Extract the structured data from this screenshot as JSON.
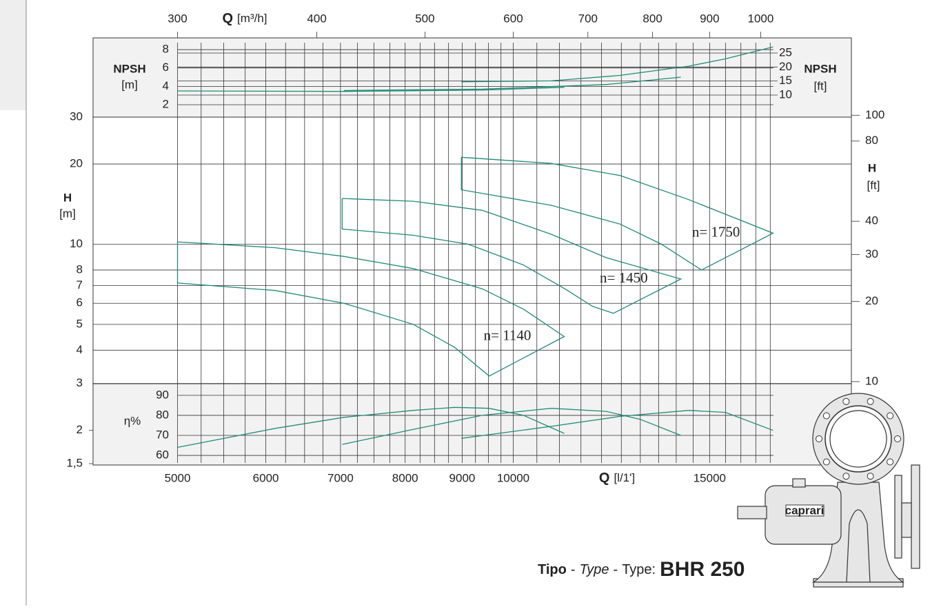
{
  "chart_data": [
    {
      "type": "line",
      "xlabel": {
        "symbol": "Q",
        "unit": "[m³/h]"
      },
      "ylabel": {
        "symbol": "NPSH",
        "unit": "[m]"
      },
      "y2label": {
        "symbol": "NPSH",
        "unit": "[ft]"
      },
      "log_x": true,
      "xlim": [
        4200,
        20100
      ],
      "x2lim": [
        252,
        1206
      ],
      "x2ticks": [
        300,
        400,
        500,
        600,
        700,
        800,
        900,
        1000
      ],
      "ylim": [
        0.65,
        9.28
      ],
      "yticks": [
        2,
        4,
        6,
        8
      ],
      "y2lim": [
        2.13,
        30.4
      ],
      "y2ticks": [
        10,
        15,
        20,
        25
      ],
      "grid": true,
      "series": [
        {
          "color": "#1f8a78",
          "x": [
            5000,
            7050,
            9380,
            11110
          ],
          "values": [
            3.5,
            3.45,
            3.6,
            3.9
          ]
        },
        {
          "color": "#1f8a78",
          "x": [
            7050,
            9380,
            12115,
            14135
          ],
          "values": [
            3.55,
            3.7,
            4.2,
            5.0
          ]
        },
        {
          "color": "#1f8a78",
          "x": [
            8985,
            10815,
            12470,
            14370,
            15500,
            17100
          ],
          "values": [
            4.5,
            4.6,
            5.2,
            6.2,
            7.0,
            8.3
          ]
        }
      ]
    },
    {
      "type": "line",
      "ylabel": {
        "symbol": "H",
        "unit": "[m]"
      },
      "y2label": {
        "symbol": "H",
        "unit": "[ft]"
      },
      "log_x": true,
      "log_y": true,
      "xlim": [
        4200,
        20100
      ],
      "x_minor_ticks": [
        5250,
        5500,
        5750,
        6250,
        6500,
        6750,
        7250,
        7500,
        7750,
        8250,
        8500,
        8750,
        9250,
        9500,
        9750,
        10500,
        11000,
        11500,
        12000,
        12500,
        13000,
        13500,
        14000,
        14500,
        15500,
        16000,
        16500,
        17000
      ],
      "ylim": [
        1.5,
        30
      ],
      "yticks": [
        {
          "value": 1.5,
          "label": "1,5"
        },
        2,
        3,
        4,
        5,
        6,
        7,
        8,
        10,
        20,
        30
      ],
      "y2lim": [
        4.92,
        98.4
      ],
      "y2ticks": [
        10,
        20,
        30,
        40,
        80,
        100
      ],
      "grid": true,
      "series": [
        {
          "name": "n= 1140",
          "color": "#1f8a78",
          "x": [
            5000,
            6120,
            7050,
            8135,
            9380,
            10215,
            11110,
            9515,
            8860,
            8135,
            7050,
            6120,
            5000,
            5000
          ],
          "values": [
            10.2,
            9.7,
            9.0,
            8.1,
            6.8,
            5.7,
            4.5,
            3.2,
            4.1,
            5.0,
            6.0,
            6.7,
            7.15,
            10.2
          ]
        },
        {
          "name": "n= 1450",
          "color": "#1f8a78",
          "x": [
            7025,
            8135,
            9380,
            10815,
            12115,
            14135,
            12295,
            11775,
            11125,
            10215,
            9115,
            8135,
            7025,
            7025
          ],
          "values": [
            14.85,
            14.5,
            13.4,
            10.9,
            8.9,
            7.4,
            5.5,
            5.85,
            6.8,
            8.35,
            10.0,
            10.8,
            11.4,
            14.85
          ]
        },
        {
          "name": "n= 1750",
          "color": "#1f8a78",
          "x": [
            8985,
            10815,
            12470,
            14370,
            17100,
            14750,
            13580,
            12470,
            10815,
            8985,
            8985
          ],
          "values": [
            21.2,
            20.1,
            18.1,
            14.7,
            11.0,
            8.0,
            10.0,
            11.9,
            14.0,
            16.0,
            21.2
          ]
        }
      ]
    },
    {
      "type": "line",
      "xlabel": {
        "symbol": "Q",
        "unit": "[l/1']"
      },
      "ylabel": "η%",
      "log_x": true,
      "xlim": [
        4200,
        20100
      ],
      "xticks": [
        5000,
        6000,
        7000,
        8000,
        9000,
        10000,
        15000
      ],
      "ylim": [
        55.2,
        95.8
      ],
      "yticks": [
        60,
        70,
        80,
        90
      ],
      "grid": true,
      "series": [
        {
          "color": "#1f8a78",
          "x": [
            5000,
            6120,
            7050,
            8135,
            8860,
            9515,
            10215,
            11110
          ],
          "values": [
            64,
            73.5,
            79,
            82.5,
            84,
            83.5,
            80,
            71
          ]
        },
        {
          "color": "#1f8a78",
          "x": [
            7025,
            8135,
            9380,
            10815,
            12115,
            13000,
            14135
          ],
          "values": [
            65.5,
            73,
            80,
            83.5,
            82,
            78,
            70
          ]
        },
        {
          "color": "#1f8a78",
          "x": [
            8985,
            10815,
            12470,
            14370,
            15500,
            17100
          ],
          "values": [
            68.5,
            74.5,
            79.5,
            82.5,
            81.5,
            72.5
          ]
        }
      ]
    }
  ],
  "footer": {
    "parts": [
      "Tipo",
      "-",
      "Type",
      "-",
      "Type:",
      "BHR 250"
    ]
  },
  "pump": {
    "brand": "caprari"
  }
}
